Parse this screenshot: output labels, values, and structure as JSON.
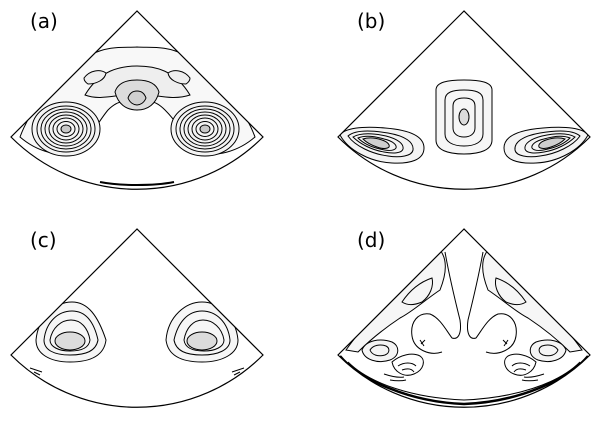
{
  "figure": {
    "panels": [
      {
        "id": "a",
        "label": "(a)"
      },
      {
        "id": "b",
        "label": "(b)"
      },
      {
        "id": "c",
        "label": "(c)"
      },
      {
        "id": "d",
        "label": "(d)"
      }
    ]
  },
  "colors": {
    "line": "#000000",
    "background": "#ffffff",
    "fill_light": "#f2f2f2",
    "fill_mid": "#d8d8d8"
  }
}
